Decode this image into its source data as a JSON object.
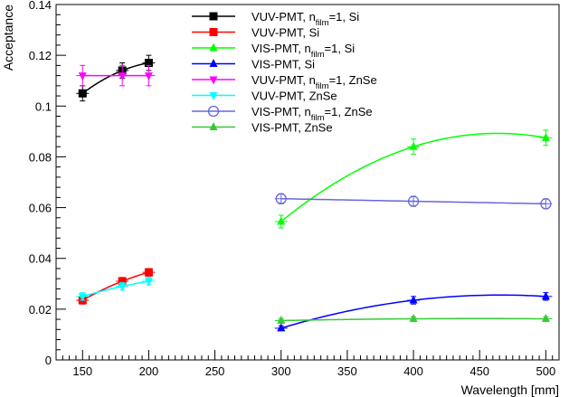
{
  "chart_data": {
    "type": "scatter",
    "title": "",
    "xlabel": "Wavelength [mm]",
    "ylabel": "Acceptance",
    "xlim": [
      130,
      510
    ],
    "ylim": [
      0,
      0.14
    ],
    "xticks": [
      {
        "v": 150,
        "label": "150"
      },
      {
        "v": 200,
        "label": "200"
      },
      {
        "v": 250,
        "label": "250"
      },
      {
        "v": 300,
        "label": "300"
      },
      {
        "v": 350,
        "label": "350"
      },
      {
        "v": 400,
        "label": "400"
      },
      {
        "v": 450,
        "label": "450"
      },
      {
        "v": 500,
        "label": "500"
      }
    ],
    "yticks": [
      {
        "v": 0,
        "label": "0"
      },
      {
        "v": 0.02,
        "label": "0.02"
      },
      {
        "v": 0.04,
        "label": "0.04"
      },
      {
        "v": 0.06,
        "label": "0.06"
      },
      {
        "v": 0.08,
        "label": "0.08"
      },
      {
        "v": 0.1,
        "label": "0.1"
      },
      {
        "v": 0.12,
        "label": "0.12"
      },
      {
        "v": 0.14,
        "label": "0.14"
      }
    ],
    "series": [
      {
        "name": "VUV-PMT, n_film=1, Si",
        "legend": {
          "prefix": "VUV-PMT, n",
          "sub": "film",
          "suffix": "=1, Si"
        },
        "color": "#000000",
        "marker": "square",
        "x": [
          150,
          180,
          200
        ],
        "y": [
          0.105,
          0.114,
          0.117
        ],
        "err": [
          0.003,
          0.003,
          0.003
        ]
      },
      {
        "name": "VUV-PMT, Si",
        "legend": {
          "prefix": "VUV-PMT, Si",
          "sub": "",
          "suffix": ""
        },
        "color": "#ff0000",
        "marker": "square",
        "x": [
          150,
          180,
          200
        ],
        "y": [
          0.0235,
          0.031,
          0.0345
        ],
        "err": [
          0.0015,
          0.0015,
          0.0015
        ]
      },
      {
        "name": "VIS-PMT, n_film=1, Si",
        "legend": {
          "prefix": "VIS-PMT, n",
          "sub": "film",
          "suffix": "=1, Si"
        },
        "color": "#00ff00",
        "marker": "triangle-up",
        "x": [
          300,
          400,
          500
        ],
        "y": [
          0.0545,
          0.084,
          0.0875
        ],
        "err": [
          0.0025,
          0.003,
          0.003
        ]
      },
      {
        "name": "VIS-PMT, Si",
        "legend": {
          "prefix": "VIS-PMT, Si",
          "sub": "",
          "suffix": ""
        },
        "color": "#0000ff",
        "marker": "triangle-up",
        "x": [
          300,
          400,
          500
        ],
        "y": [
          0.0125,
          0.0235,
          0.025
        ],
        "err": [
          0.001,
          0.0015,
          0.0015
        ]
      },
      {
        "name": "VUV-PMT, n_film=1, ZnSe",
        "legend": {
          "prefix": "VUV-PMT, n",
          "sub": "film",
          "suffix": "=1, ZnSe"
        },
        "color": "#ff00ff",
        "marker": "triangle-down",
        "x": [
          150,
          180,
          200
        ],
        "y": [
          0.112,
          0.112,
          0.112
        ],
        "err": [
          0.004,
          0.004,
          0.004
        ]
      },
      {
        "name": "VUV-PMT, ZnSe",
        "legend": {
          "prefix": "VUV-PMT, ZnSe",
          "sub": "",
          "suffix": ""
        },
        "color": "#00ffff",
        "marker": "triangle-down",
        "x": [
          150,
          180,
          200
        ],
        "y": [
          0.025,
          0.029,
          0.031
        ],
        "err": [
          0.0015,
          0.0015,
          0.0015
        ]
      },
      {
        "name": "VIS-PMT, n_film=1, ZnSe",
        "legend": {
          "prefix": "VIS-PMT, n",
          "sub": "film",
          "suffix": "=1, ZnSe"
        },
        "color": "#6666dd",
        "marker": "circle-open",
        "x": [
          300,
          400,
          500
        ],
        "y": [
          0.0635,
          0.0625,
          0.0615
        ],
        "err": [
          0.002,
          0.002,
          0.002
        ]
      },
      {
        "name": "VIS-PMT, ZnSe",
        "legend": {
          "prefix": "VIS-PMT, ZnSe",
          "sub": "",
          "suffix": ""
        },
        "color": "#33cc33",
        "marker": "triangle-up",
        "x": [
          300,
          400,
          500
        ],
        "y": [
          0.0155,
          0.0162,
          0.0162
        ],
        "err": [
          0.0008,
          0.0008,
          0.0008
        ]
      }
    ]
  }
}
